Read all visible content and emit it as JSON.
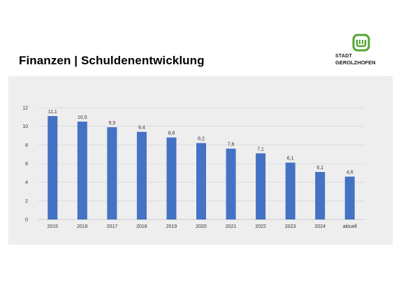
{
  "slide": {
    "title": "Finanzen | Schuldenentwicklung"
  },
  "logo": {
    "line1": "STADT",
    "line2": "GEROLZHOFEN",
    "color": "#55a630"
  },
  "chart_data": {
    "type": "bar",
    "title": "",
    "xlabel": "",
    "ylabel": "",
    "categories": [
      "2015",
      "2016",
      "2017",
      "2018",
      "2019",
      "2020",
      "2021",
      "2022",
      "2023",
      "2024",
      "aktuell"
    ],
    "values": [
      11.1,
      10.5,
      9.9,
      9.4,
      8.8,
      8.2,
      7.6,
      7.1,
      6.1,
      5.1,
      4.6
    ],
    "data_labels": [
      "11,1",
      "10,5",
      "9,9",
      "9,4",
      "8,8",
      "8,2",
      "7,6",
      "7,1",
      "6,1",
      "5,1",
      "4,6"
    ],
    "ylim": [
      0,
      12
    ],
    "yticks": [
      0,
      2,
      4,
      6,
      8,
      10,
      12
    ],
    "grid": true,
    "legend": "none",
    "bar_color": "#4472c4",
    "background": "#eeeeee"
  }
}
